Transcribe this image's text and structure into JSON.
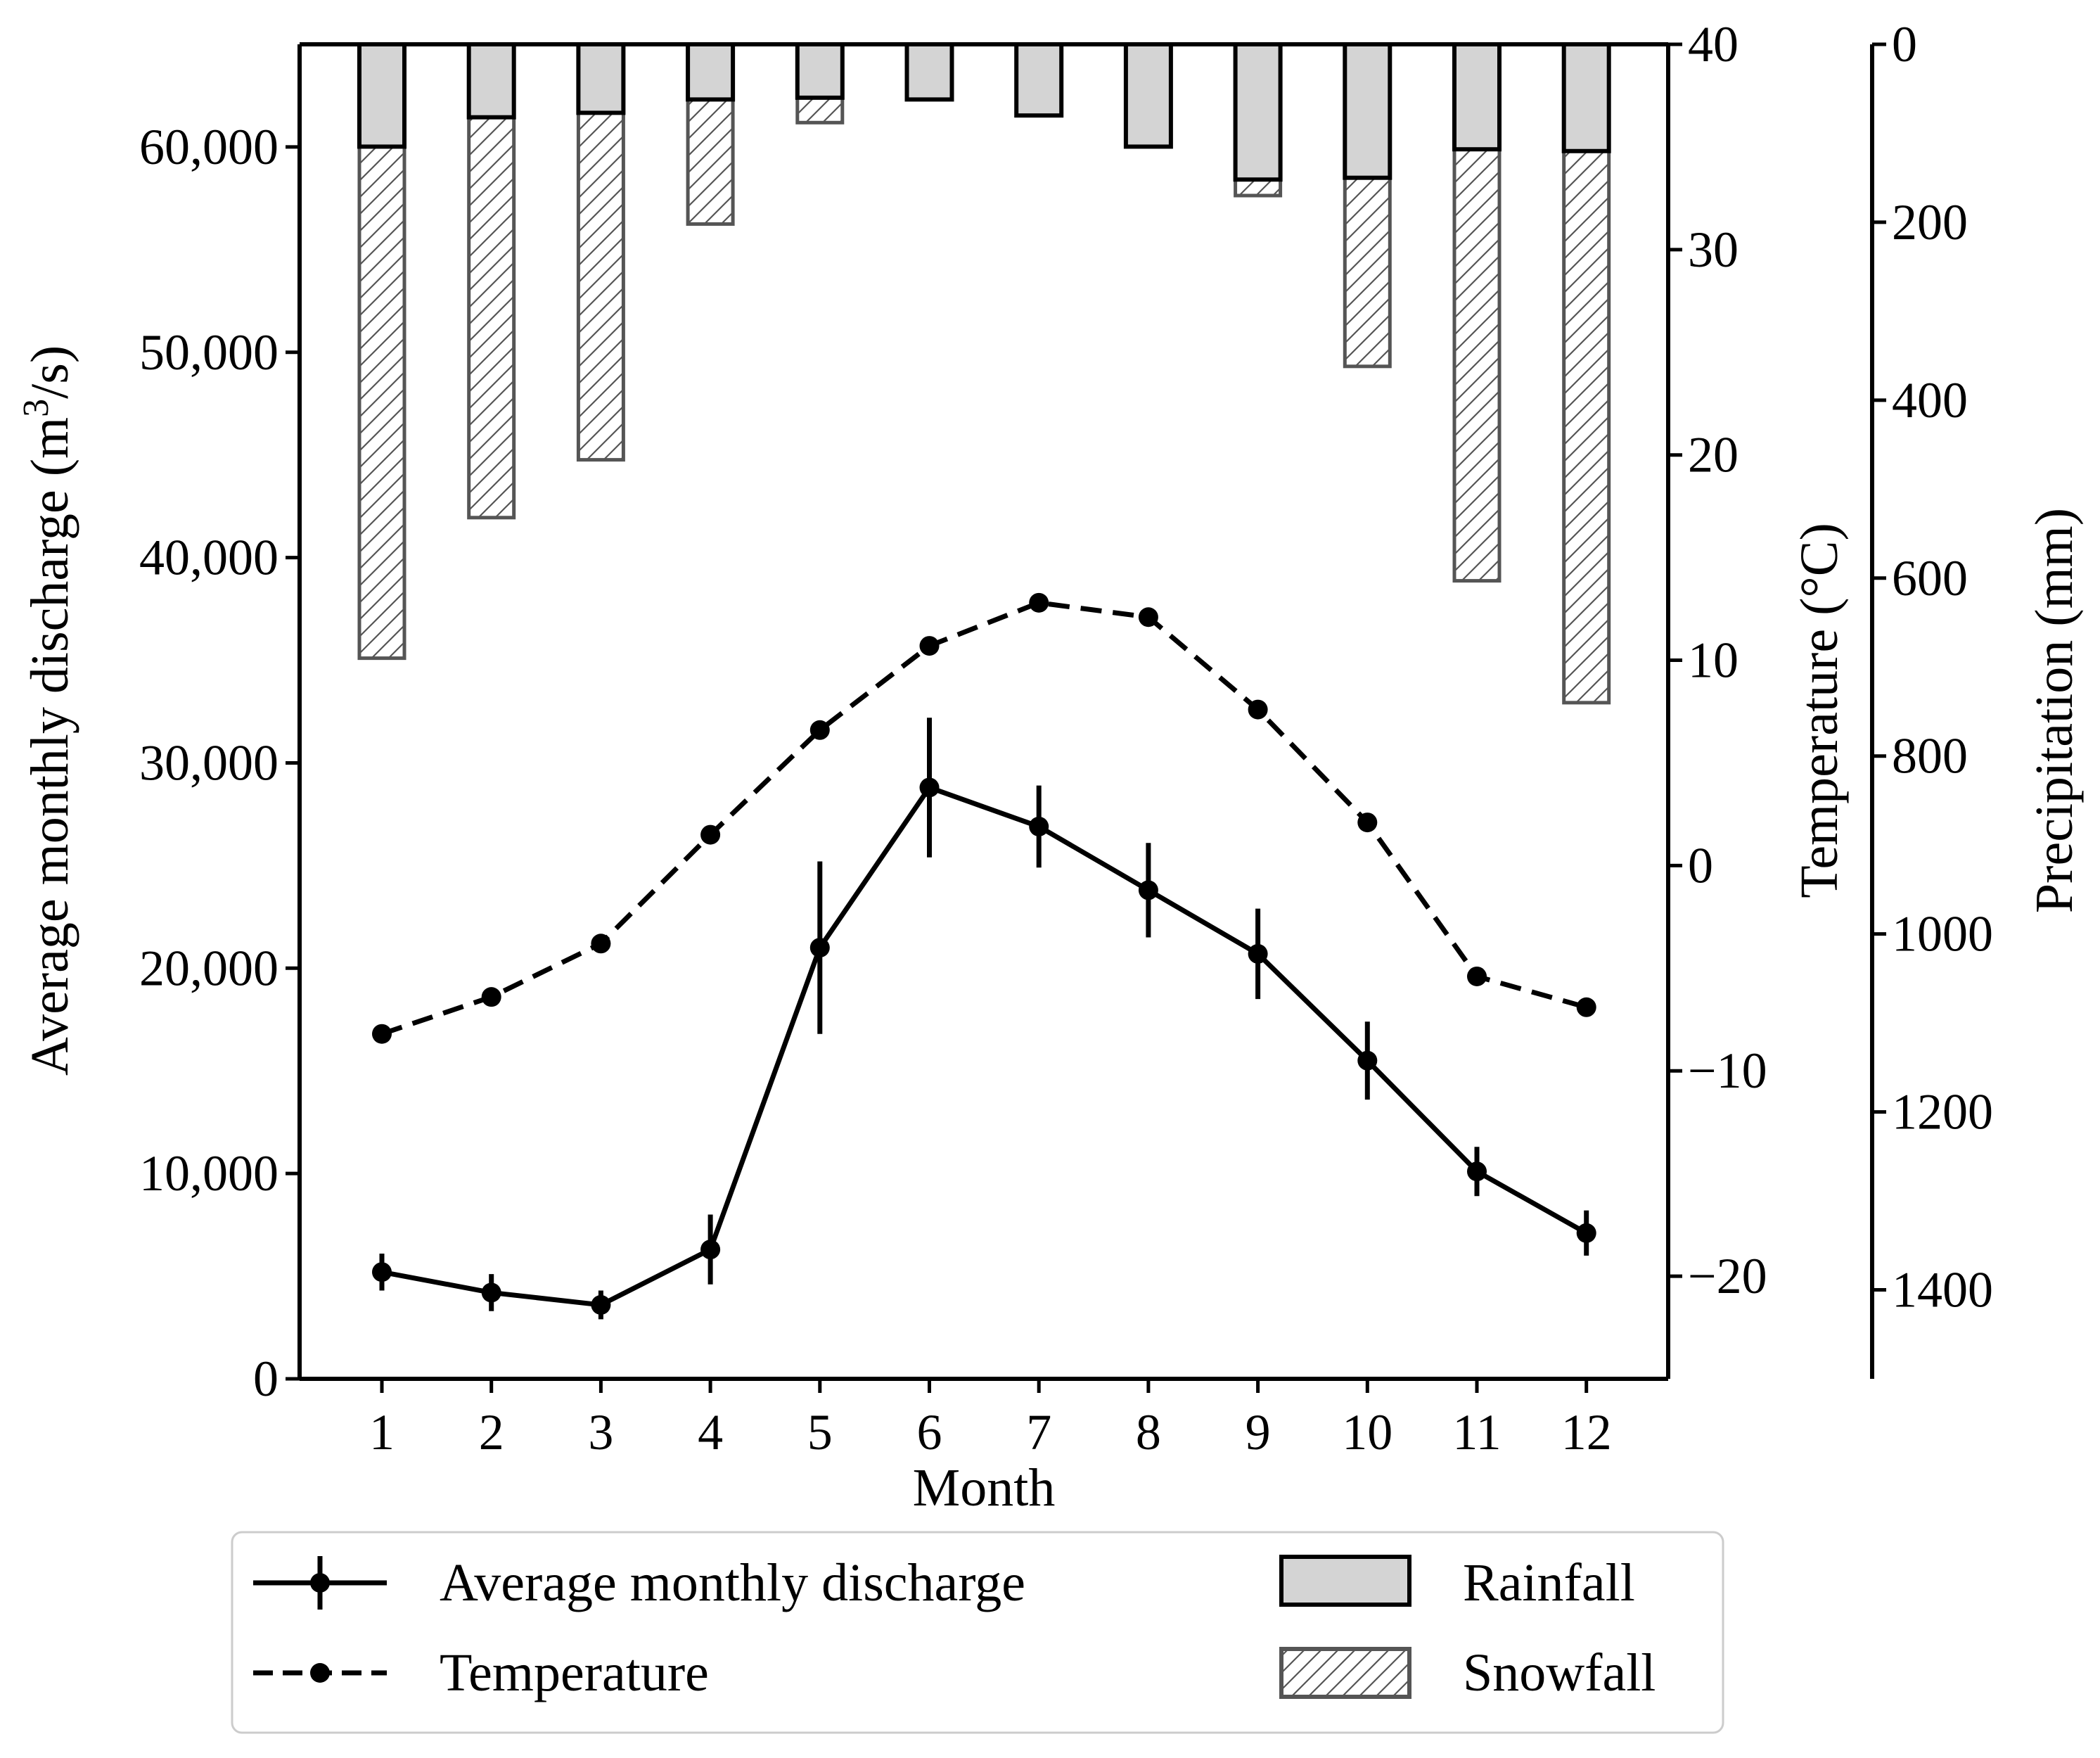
{
  "chart_data": {
    "type": "bar+line",
    "categories": [
      "1",
      "2",
      "3",
      "4",
      "5",
      "6",
      "7",
      "8",
      "9",
      "10",
      "11",
      "12"
    ],
    "xlabel": "Month",
    "discharge": {
      "name": "Average monthly discharge",
      "ylabel_prefix": "Average monthly discharge (m",
      "ylabel_sup": "3",
      "ylabel_suffix": "/s)",
      "ylim": [
        0,
        65000
      ],
      "ticks": [
        0,
        10000,
        20000,
        30000,
        40000,
        50000,
        60000
      ],
      "tick_labels": [
        "0",
        "10,000",
        "20,000",
        "30,000",
        "40,000",
        "50,000",
        "60,000"
      ],
      "values": [
        5200,
        4200,
        3600,
        6300,
        21000,
        28800,
        26900,
        23800,
        20700,
        15500,
        10100,
        7100
      ],
      "errors": [
        900,
        900,
        700,
        1700,
        4200,
        3400,
        2000,
        2300,
        2200,
        1900,
        1200,
        1100
      ]
    },
    "temperature": {
      "name": "Temperature",
      "ylabel": "Temperature (°C)",
      "ylim": [
        -25,
        40
      ],
      "ticks": [
        -20,
        -10,
        0,
        10,
        20,
        30,
        40
      ],
      "tick_labels": [
        "−20",
        "−10",
        "0",
        "10",
        "20",
        "30",
        "40"
      ],
      "values": [
        -8.2,
        -6.4,
        -3.8,
        1.5,
        6.6,
        10.7,
        12.8,
        12.1,
        7.6,
        2.1,
        -5.4,
        -6.9
      ]
    },
    "precipitation": {
      "ylabel": "Precipitation (mm)",
      "ylim": [
        0,
        1500
      ],
      "inverted": true,
      "ticks": [
        0,
        200,
        400,
        600,
        800,
        1000,
        1200,
        1400
      ],
      "tick_labels": [
        "0",
        "200",
        "400",
        "600",
        "800",
        "1000",
        "1200",
        "1400"
      ],
      "rainfall": [
        115,
        82,
        77,
        62,
        60,
        62,
        80,
        115,
        152,
        150,
        118,
        120
      ],
      "snowfall": [
        575,
        450,
        390,
        140,
        28,
        0,
        0,
        0,
        18,
        212,
        485,
        620
      ]
    },
    "legend": [
      {
        "label": "Average monthly discharge",
        "kind": "line-errorbar"
      },
      {
        "label": "Temperature",
        "kind": "dashed-line"
      },
      {
        "label": "Rainfall",
        "kind": "bar-gray"
      },
      {
        "label": "Snowfall",
        "kind": "bar-hatched"
      }
    ],
    "colors": {
      "rainfall_fill": "#d4d4d4",
      "snowfall_fill": "#ffffff",
      "bar_edge": "#555555",
      "line": "#000000"
    }
  }
}
